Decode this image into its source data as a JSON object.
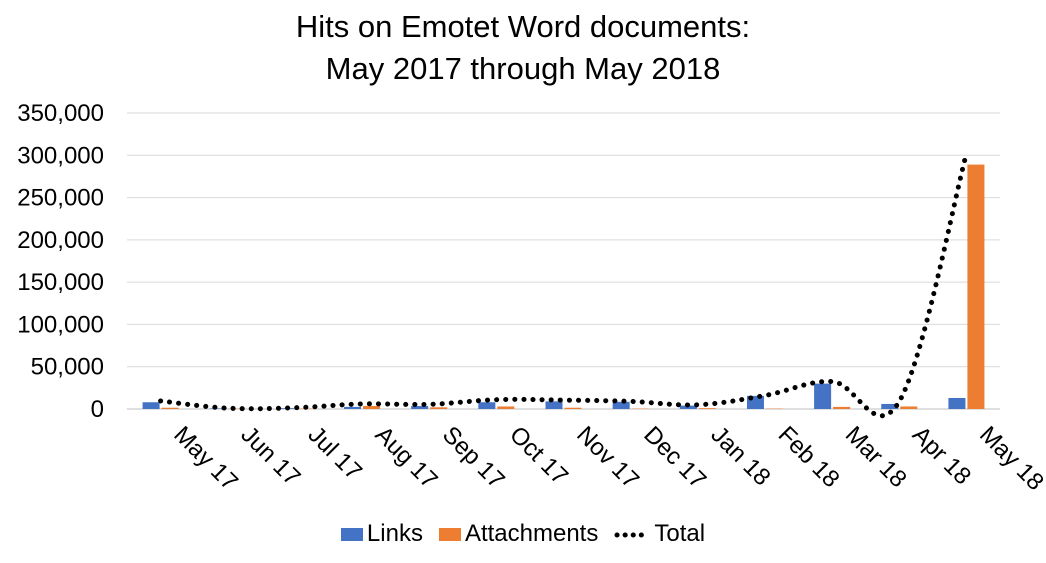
{
  "chart_data": {
    "type": "bar",
    "title_line1": "Hits on Emotet Word documents:",
    "title_line2": "May 2017 through May 2018",
    "categories": [
      "May 17",
      "Jun 17",
      "Jul 17",
      "Aug 17",
      "Sep 17",
      "Oct 17",
      "Nov 17",
      "Dec 17",
      "Jan 18",
      "Feb 18",
      "Mar 18",
      "Apr 18",
      "May 18"
    ],
    "series": [
      {
        "name": "Links",
        "type": "bar",
        "color": "#4472C4",
        "values": [
          8000,
          700,
          1000,
          2500,
          3500,
          8000,
          9000,
          8500,
          4000,
          15500,
          30000,
          6000,
          13000
        ]
      },
      {
        "name": "Attachments",
        "type": "bar",
        "color": "#ED7D31",
        "values": [
          1500,
          300,
          500,
          3500,
          2000,
          3000,
          1500,
          500,
          1000,
          500,
          2500,
          3000,
          289000
        ]
      },
      {
        "name": "Total",
        "type": "line",
        "style": "dotted",
        "color": "#000000",
        "values": [
          9500,
          1000,
          1500,
          6000,
          5500,
          11000,
          10500,
          9000,
          5000,
          16000,
          32500,
          9000,
          302000
        ]
      }
    ],
    "ylim": [
      0,
      350000
    ],
    "yticks": [
      0,
      50000,
      100000,
      150000,
      200000,
      250000,
      300000,
      350000
    ],
    "ytick_labels": [
      "0",
      "50,000",
      "100,000",
      "150,000",
      "200,000",
      "250,000",
      "300,000",
      "350,000"
    ],
    "grid": true,
    "legend_position": "bottom"
  }
}
